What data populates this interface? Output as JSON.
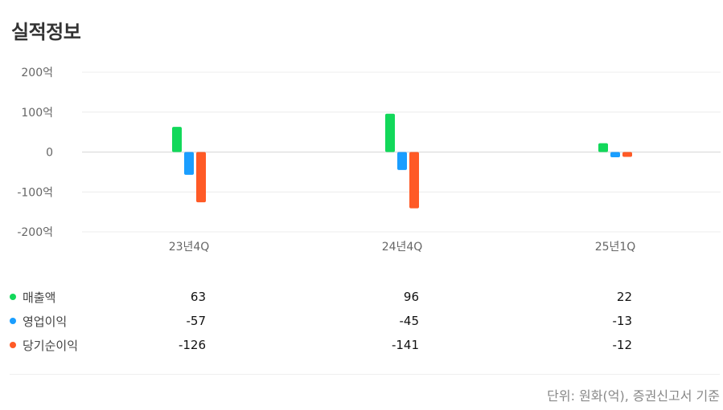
{
  "title": "실적정보",
  "unit_note": "단위: 원화(억), 증권신고서 기준",
  "chart_data": {
    "type": "bar",
    "categories": [
      "23년4Q",
      "24년4Q",
      "25년1Q"
    ],
    "y_ticks": [
      "200억",
      "100억",
      "0",
      "-100억",
      "-200억"
    ],
    "y_tick_values": [
      200,
      100,
      0,
      -100,
      -200
    ],
    "ylim": [
      -200,
      200
    ],
    "series": [
      {
        "name": "매출액",
        "values": [
          63,
          96,
          22
        ],
        "color": "#12d85a"
      },
      {
        "name": "영업이익",
        "values": [
          -57,
          -45,
          -13
        ],
        "color": "#1a9eff"
      },
      {
        "name": "당기순이익",
        "values": [
          -126,
          -141,
          -12
        ],
        "color": "#ff5a26"
      }
    ]
  },
  "table": {
    "rows": [
      {
        "label": "매출액",
        "color": "#12d85a",
        "values": [
          "63",
          "96",
          "22"
        ]
      },
      {
        "label": "영업이익",
        "color": "#1a9eff",
        "values": [
          "-57",
          "-45",
          "-13"
        ]
      },
      {
        "label": "당기순이익",
        "color": "#ff5a26",
        "values": [
          "-126",
          "-141",
          "-12"
        ]
      }
    ]
  }
}
